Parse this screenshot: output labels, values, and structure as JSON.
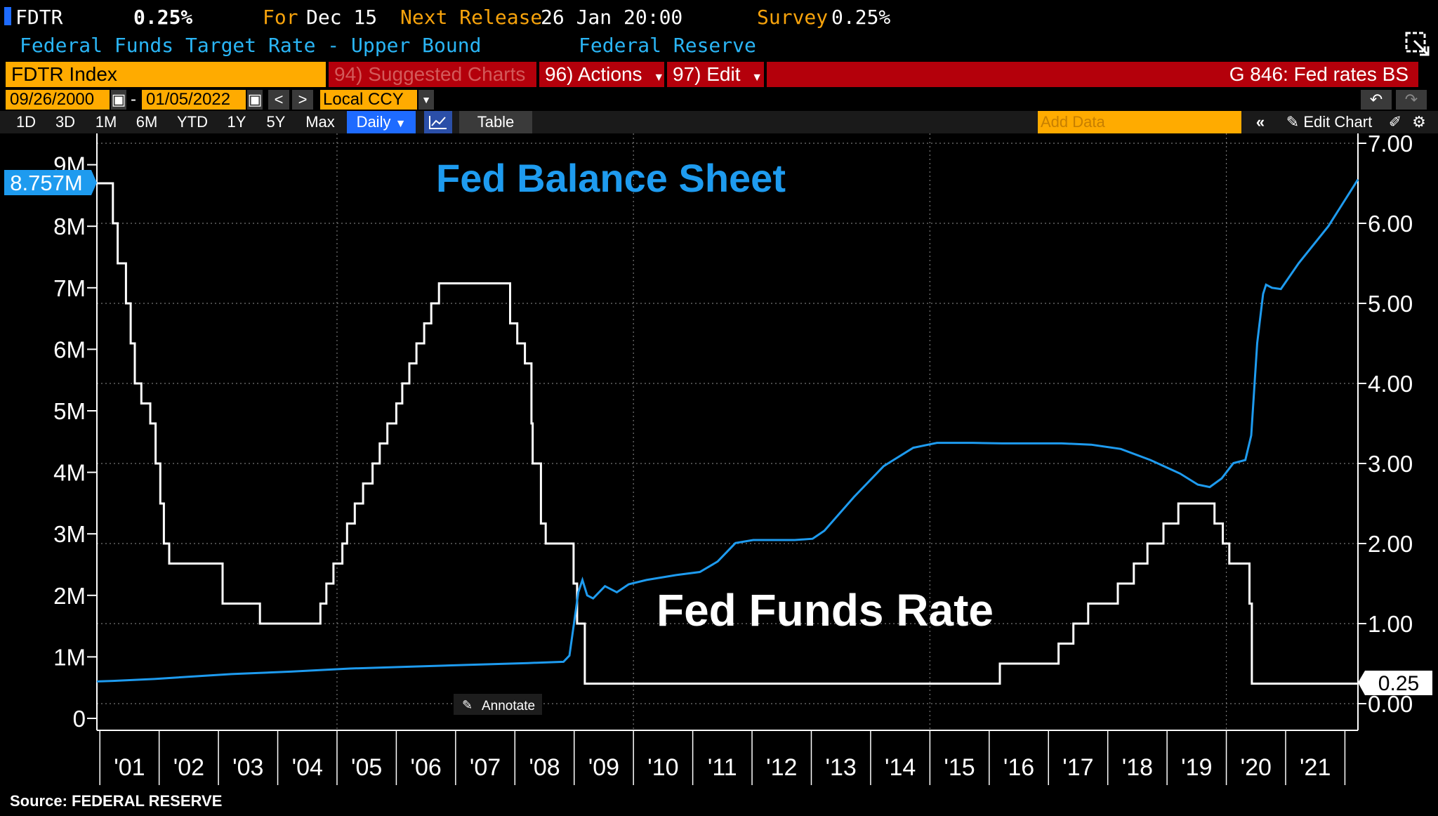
{
  "header": {
    "ticker": "FDTR",
    "value": "0.25%",
    "for_label": "For",
    "for_date": "Dec 15",
    "next_release_label": "Next Release",
    "next_release_value": "26 Jan 20:00",
    "survey_label": "Survey",
    "survey_value": "0.25%",
    "description": "Federal Funds Target Rate - Upper Bound",
    "source_org": "Federal Reserve"
  },
  "toolbar": {
    "index_name": "FDTR Index",
    "suggested_charts": "94) Suggested Charts",
    "actions": "96) Actions",
    "edit": "97) Edit",
    "chart_id": "G 846: Fed rates BS",
    "start_date": "09/26/2000",
    "dash": "-",
    "end_date": "01/05/2022",
    "currency": "Local CCY",
    "periods": [
      "1D",
      "3D",
      "1M",
      "6M",
      "YTD",
      "1Y",
      "5Y",
      "Max"
    ],
    "frequency": "Daily",
    "table_label": "Table",
    "add_data_placeholder": "Add Data",
    "edit_chart": "Edit Chart"
  },
  "annotate_label": "Annotate",
  "source": "Source: FEDERAL RESERVE",
  "colors": {
    "balance_sheet": "#1e9bef",
    "fed_funds": "#ffffff",
    "orange": "#ffab00",
    "red": "#b4000b",
    "label_blue": "#2ab5f5"
  },
  "chart_data": {
    "type": "line",
    "annotations": [
      "Fed Balance Sheet",
      "Fed Funds Rate"
    ],
    "x_ticks": [
      "'01",
      "'02",
      "'03",
      "'04",
      "'05",
      "'06",
      "'07",
      "'08",
      "'09",
      "'10",
      "'11",
      "'12",
      "'13",
      "'14",
      "'15",
      "'16",
      "'17",
      "'18",
      "'19",
      "'20",
      "'21"
    ],
    "y_left": {
      "ticks": [
        "0",
        "1M",
        "2M",
        "3M",
        "4M",
        "5M",
        "6M",
        "7M",
        "8M",
        "9M"
      ],
      "range": [
        0,
        9000000
      ],
      "last_value_label": "8.757M"
    },
    "y_right": {
      "ticks": [
        "0.00",
        "1.00",
        "2.00",
        "3.00",
        "4.00",
        "5.00",
        "6.00",
        "7.00"
      ],
      "range": [
        0,
        7
      ],
      "last_value_label": "0.25"
    },
    "series": [
      {
        "name": "Fed Balance Sheet",
        "axis": "left",
        "points": [
          [
            2000.73,
            0.6
          ],
          [
            2001.0,
            0.61
          ],
          [
            2001.7,
            0.64
          ],
          [
            2002.0,
            0.66
          ],
          [
            2003.0,
            0.72
          ],
          [
            2004.0,
            0.76
          ],
          [
            2005.0,
            0.81
          ],
          [
            2006.0,
            0.84
          ],
          [
            2007.0,
            0.87
          ],
          [
            2008.0,
            0.9
          ],
          [
            2008.6,
            0.92
          ],
          [
            2008.7,
            1.02
          ],
          [
            2008.8,
            1.7
          ],
          [
            2008.85,
            2.05
          ],
          [
            2008.92,
            2.25
          ],
          [
            2009.0,
            2.0
          ],
          [
            2009.1,
            1.95
          ],
          [
            2009.3,
            2.15
          ],
          [
            2009.5,
            2.05
          ],
          [
            2009.7,
            2.18
          ],
          [
            2010.0,
            2.25
          ],
          [
            2010.5,
            2.33
          ],
          [
            2010.9,
            2.38
          ],
          [
            2011.2,
            2.55
          ],
          [
            2011.5,
            2.85
          ],
          [
            2011.8,
            2.9
          ],
          [
            2012.0,
            2.9
          ],
          [
            2012.5,
            2.9
          ],
          [
            2012.8,
            2.92
          ],
          [
            2013.0,
            3.05
          ],
          [
            2013.5,
            3.6
          ],
          [
            2014.0,
            4.1
          ],
          [
            2014.5,
            4.4
          ],
          [
            2014.9,
            4.48
          ],
          [
            2015.5,
            4.48
          ],
          [
            2016.0,
            4.47
          ],
          [
            2017.0,
            4.47
          ],
          [
            2017.5,
            4.45
          ],
          [
            2018.0,
            4.38
          ],
          [
            2018.5,
            4.2
          ],
          [
            2019.0,
            3.98
          ],
          [
            2019.3,
            3.8
          ],
          [
            2019.5,
            3.76
          ],
          [
            2019.7,
            3.9
          ],
          [
            2019.9,
            4.15
          ],
          [
            2020.1,
            4.2
          ],
          [
            2020.2,
            4.6
          ],
          [
            2020.3,
            6.1
          ],
          [
            2020.4,
            6.9
          ],
          [
            2020.45,
            7.05
          ],
          [
            2020.55,
            7.0
          ],
          [
            2020.7,
            6.98
          ],
          [
            2021.0,
            7.4
          ],
          [
            2021.5,
            8.0
          ],
          [
            2022.0,
            8.76
          ]
        ]
      },
      {
        "name": "Fed Funds Rate",
        "axis": "right",
        "points": [
          [
            2000.73,
            6.5
          ],
          [
            2001.0,
            6.5
          ],
          [
            2001.0,
            6.0
          ],
          [
            2001.08,
            6.0
          ],
          [
            2001.08,
            5.5
          ],
          [
            2001.22,
            5.5
          ],
          [
            2001.22,
            5.0
          ],
          [
            2001.3,
            5.0
          ],
          [
            2001.3,
            4.5
          ],
          [
            2001.37,
            4.5
          ],
          [
            2001.37,
            4.0
          ],
          [
            2001.48,
            4.0
          ],
          [
            2001.48,
            3.75
          ],
          [
            2001.63,
            3.75
          ],
          [
            2001.63,
            3.5
          ],
          [
            2001.72,
            3.5
          ],
          [
            2001.72,
            3.0
          ],
          [
            2001.8,
            3.0
          ],
          [
            2001.8,
            2.5
          ],
          [
            2001.86,
            2.5
          ],
          [
            2001.86,
            2.0
          ],
          [
            2001.95,
            2.0
          ],
          [
            2001.95,
            1.75
          ],
          [
            2002.85,
            1.75
          ],
          [
            2002.85,
            1.25
          ],
          [
            2003.48,
            1.25
          ],
          [
            2003.48,
            1.0
          ],
          [
            2004.5,
            1.0
          ],
          [
            2004.5,
            1.25
          ],
          [
            2004.6,
            1.25
          ],
          [
            2004.6,
            1.5
          ],
          [
            2004.72,
            1.5
          ],
          [
            2004.72,
            1.75
          ],
          [
            2004.87,
            1.75
          ],
          [
            2004.87,
            2.0
          ],
          [
            2004.95,
            2.0
          ],
          [
            2004.95,
            2.25
          ],
          [
            2005.08,
            2.25
          ],
          [
            2005.08,
            2.5
          ],
          [
            2005.22,
            2.5
          ],
          [
            2005.22,
            2.75
          ],
          [
            2005.38,
            2.75
          ],
          [
            2005.38,
            3.0
          ],
          [
            2005.5,
            3.0
          ],
          [
            2005.5,
            3.25
          ],
          [
            2005.63,
            3.25
          ],
          [
            2005.63,
            3.5
          ],
          [
            2005.78,
            3.5
          ],
          [
            2005.78,
            3.75
          ],
          [
            2005.88,
            3.75
          ],
          [
            2005.88,
            4.0
          ],
          [
            2006.0,
            4.0
          ],
          [
            2006.0,
            4.25
          ],
          [
            2006.12,
            4.25
          ],
          [
            2006.12,
            4.5
          ],
          [
            2006.25,
            4.5
          ],
          [
            2006.25,
            4.75
          ],
          [
            2006.37,
            4.75
          ],
          [
            2006.37,
            5.0
          ],
          [
            2006.5,
            5.0
          ],
          [
            2006.5,
            5.25
          ],
          [
            2007.7,
            5.25
          ],
          [
            2007.7,
            4.75
          ],
          [
            2007.82,
            4.75
          ],
          [
            2007.82,
            4.5
          ],
          [
            2007.95,
            4.5
          ],
          [
            2007.95,
            4.25
          ],
          [
            2008.06,
            4.25
          ],
          [
            2008.06,
            3.5
          ],
          [
            2008.08,
            3.5
          ],
          [
            2008.08,
            3.0
          ],
          [
            2008.22,
            3.0
          ],
          [
            2008.22,
            2.25
          ],
          [
            2008.3,
            2.25
          ],
          [
            2008.3,
            2.0
          ],
          [
            2008.77,
            2.0
          ],
          [
            2008.77,
            1.5
          ],
          [
            2008.83,
            1.5
          ],
          [
            2008.83,
            1.0
          ],
          [
            2008.96,
            1.0
          ],
          [
            2008.96,
            0.25
          ],
          [
            2015.96,
            0.25
          ],
          [
            2015.96,
            0.5
          ],
          [
            2016.95,
            0.5
          ],
          [
            2016.95,
            0.75
          ],
          [
            2017.2,
            0.75
          ],
          [
            2017.2,
            1.0
          ],
          [
            2017.45,
            1.0
          ],
          [
            2017.45,
            1.25
          ],
          [
            2017.95,
            1.25
          ],
          [
            2017.95,
            1.5
          ],
          [
            2018.22,
            1.5
          ],
          [
            2018.22,
            1.75
          ],
          [
            2018.45,
            1.75
          ],
          [
            2018.45,
            2.0
          ],
          [
            2018.72,
            2.0
          ],
          [
            2018.72,
            2.25
          ],
          [
            2018.97,
            2.25
          ],
          [
            2018.97,
            2.5
          ],
          [
            2019.58,
            2.5
          ],
          [
            2019.58,
            2.25
          ],
          [
            2019.72,
            2.25
          ],
          [
            2019.72,
            2.0
          ],
          [
            2019.83,
            2.0
          ],
          [
            2019.83,
            1.75
          ],
          [
            2020.17,
            1.75
          ],
          [
            2020.17,
            1.25
          ],
          [
            2020.21,
            1.25
          ],
          [
            2020.21,
            0.25
          ],
          [
            2022.0,
            0.25
          ]
        ]
      }
    ]
  }
}
